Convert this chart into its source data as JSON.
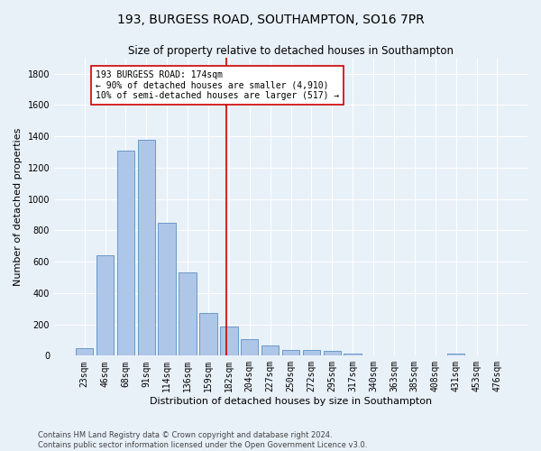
{
  "title": "193, BURGESS ROAD, SOUTHAMPTON, SO16 7PR",
  "subtitle": "Size of property relative to detached houses in Southampton",
  "xlabel": "Distribution of detached houses by size in Southampton",
  "ylabel": "Number of detached properties",
  "categories": [
    "23sqm",
    "46sqm",
    "68sqm",
    "91sqm",
    "114sqm",
    "136sqm",
    "159sqm",
    "182sqm",
    "204sqm",
    "227sqm",
    "250sqm",
    "272sqm",
    "295sqm",
    "317sqm",
    "340sqm",
    "363sqm",
    "385sqm",
    "408sqm",
    "431sqm",
    "453sqm",
    "476sqm"
  ],
  "values": [
    50,
    640,
    1310,
    1380,
    850,
    530,
    275,
    185,
    105,
    65,
    37,
    37,
    28,
    15,
    0,
    0,
    0,
    0,
    12,
    0,
    0
  ],
  "bar_color": "#aec6e8",
  "bar_edge_color": "#5a8fc2",
  "vline_color": "#cc0000",
  "annotation_text": "193 BURGESS ROAD: 174sqm\n← 90% of detached houses are smaller (4,910)\n10% of semi-detached houses are larger (517) →",
  "annotation_box_color": "#ffffff",
  "annotation_box_edge": "#cc0000",
  "background_color": "#e8f0f8",
  "grid_color": "#ffffff",
  "ylim": [
    0,
    1900
  ],
  "yticks": [
    0,
    200,
    400,
    600,
    800,
    1000,
    1200,
    1400,
    1600,
    1800
  ],
  "footer_line1": "Contains HM Land Registry data © Crown copyright and database right 2024.",
  "footer_line2": "Contains public sector information licensed under the Open Government Licence v3.0.",
  "title_fontsize": 10,
  "subtitle_fontsize": 8.5,
  "xlabel_fontsize": 8,
  "ylabel_fontsize": 8,
  "tick_fontsize": 7,
  "annotation_fontsize": 7,
  "footer_fontsize": 6
}
